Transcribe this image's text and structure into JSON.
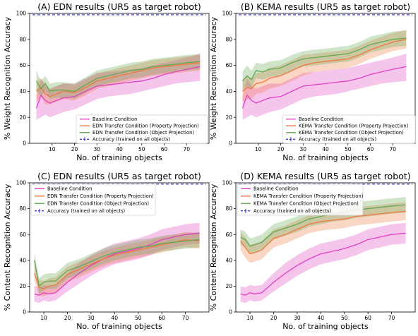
{
  "chart_data": [
    {
      "type": "line",
      "title": "(A) EDN results (UR5 as target robot)",
      "xlabel": "No. of training objects",
      "ylabel": "% Weight Recognition Accuracy",
      "xlim": [
        0,
        80
      ],
      "ylim": [
        0,
        100
      ],
      "xticks": [
        10,
        20,
        30,
        40,
        50,
        60,
        70
      ],
      "yticks": [
        0,
        20,
        40,
        60,
        80,
        100
      ],
      "reference_line": {
        "label": "Accuracy (trained on all objects)",
        "value": 99,
        "color": "#3a3ad0"
      },
      "legend_position": "lower-right",
      "x": [
        3,
        5,
        7,
        9,
        12,
        15,
        20,
        25,
        30,
        35,
        40,
        45,
        50,
        55,
        60,
        65,
        70,
        76
      ],
      "series": [
        {
          "name": "Baseline Condition",
          "color": "#e040c0",
          "values": [
            27,
            37,
            33,
            31,
            33,
            35,
            36,
            40,
            44,
            45,
            46,
            47,
            48,
            50,
            53,
            55,
            57,
            59
          ],
          "lower": [
            18,
            20,
            22,
            20,
            22,
            24,
            26,
            30,
            34,
            36,
            37,
            38,
            40,
            42,
            44,
            46,
            47,
            48
          ],
          "upper": [
            36,
            50,
            44,
            42,
            44,
            46,
            46,
            50,
            54,
            55,
            56,
            57,
            58,
            60,
            62,
            64,
            66,
            69
          ]
        },
        {
          "name": "EDN Transfer Condition (Property Projection)",
          "color": "#f07840",
          "values": [
            40,
            43,
            38,
            36,
            38,
            40,
            39,
            43,
            48,
            50,
            52,
            54,
            56,
            58,
            59,
            60,
            61,
            62
          ],
          "lower": [
            32,
            36,
            30,
            30,
            32,
            34,
            33,
            37,
            42,
            44,
            46,
            48,
            50,
            52,
            53,
            54,
            55,
            56
          ],
          "upper": [
            48,
            50,
            46,
            42,
            44,
            46,
            45,
            49,
            54,
            56,
            58,
            60,
            62,
            64,
            65,
            66,
            67,
            68
          ]
        },
        {
          "name": "EDN Transfer Condition (Object Projection)",
          "color": "#60a850",
          "values": [
            48,
            42,
            46,
            40,
            41,
            41,
            40,
            45,
            50,
            52,
            54,
            56,
            57,
            59,
            60,
            61,
            62,
            63
          ],
          "lower": [
            40,
            36,
            40,
            34,
            35,
            35,
            34,
            39,
            44,
            46,
            48,
            50,
            51,
            53,
            54,
            55,
            56,
            57
          ],
          "upper": [
            56,
            48,
            52,
            46,
            47,
            47,
            46,
            51,
            56,
            58,
            60,
            62,
            63,
            65,
            66,
            67,
            68,
            69
          ]
        }
      ]
    },
    {
      "type": "line",
      "title": "(B) KEMA results (UR5 as target robot)",
      "xlabel": "No. of training objects",
      "ylabel": "% Weight Recognition Accuracy",
      "xlim": [
        0,
        80
      ],
      "ylim": [
        0,
        100
      ],
      "xticks": [
        10,
        20,
        30,
        40,
        50,
        60,
        70
      ],
      "yticks": [
        0,
        20,
        40,
        60,
        80,
        100
      ],
      "reference_line": {
        "label": "Accuracy (trained on all objects)",
        "value": 99,
        "color": "#3a3ad0"
      },
      "legend_position": "lower-right",
      "x": [
        3,
        5,
        7,
        9,
        12,
        15,
        20,
        25,
        30,
        35,
        40,
        45,
        50,
        55,
        60,
        65,
        70,
        76
      ],
      "series": [
        {
          "name": "Baseline Condition",
          "color": "#e040c0",
          "values": [
            27,
            37,
            33,
            31,
            33,
            35,
            36,
            40,
            44,
            45,
            46,
            47,
            48,
            50,
            53,
            55,
            57,
            59
          ],
          "lower": [
            18,
            20,
            22,
            20,
            22,
            24,
            26,
            30,
            34,
            36,
            37,
            38,
            40,
            42,
            44,
            46,
            47,
            48
          ],
          "upper": [
            36,
            50,
            44,
            42,
            44,
            46,
            46,
            50,
            54,
            55,
            56,
            57,
            58,
            60,
            62,
            64,
            66,
            69
          ]
        },
        {
          "name": "KEMA Transfer Condition (Property Projection)",
          "color": "#f07840",
          "values": [
            40,
            43,
            42,
            46,
            47,
            50,
            52,
            56,
            60,
            62,
            63,
            64,
            65,
            68,
            72,
            75,
            78,
            80
          ],
          "lower": [
            32,
            34,
            34,
            38,
            39,
            42,
            44,
            48,
            52,
            55,
            56,
            57,
            58,
            61,
            65,
            68,
            71,
            73
          ],
          "upper": [
            48,
            52,
            50,
            54,
            55,
            58,
            60,
            64,
            68,
            69,
            70,
            71,
            72,
            75,
            79,
            82,
            85,
            87
          ]
        },
        {
          "name": "KEMA Transfer Condition (Object Projection)",
          "color": "#60a850",
          "values": [
            48,
            52,
            49,
            56,
            55,
            57,
            58,
            62,
            65,
            66,
            67,
            68,
            69,
            72,
            76,
            78,
            80,
            81
          ],
          "lower": [
            41,
            44,
            42,
            50,
            49,
            51,
            52,
            56,
            59,
            60,
            61,
            62,
            63,
            66,
            70,
            72,
            74,
            75
          ],
          "upper": [
            55,
            60,
            56,
            62,
            61,
            63,
            64,
            68,
            71,
            72,
            73,
            74,
            75,
            78,
            82,
            84,
            86,
            87
          ]
        }
      ]
    },
    {
      "type": "line",
      "title": "(C) EDN results (UR5 as target robot)",
      "xlabel": "No. of training objects",
      "ylabel": "% Content Recognition Accuracy",
      "xlim": [
        4,
        80
      ],
      "ylim": [
        0,
        100
      ],
      "xticks": [
        10,
        20,
        30,
        40,
        50,
        60,
        70
      ],
      "yticks": [
        0,
        20,
        40,
        60,
        80,
        100
      ],
      "reference_line": {
        "label": "Accuracy (trained on all objects)",
        "value": 99,
        "color": "#3a3ad0"
      },
      "legend_position": "upper-left",
      "x": [
        6,
        8,
        10,
        12,
        15,
        20,
        25,
        30,
        35,
        40,
        45,
        50,
        55,
        60,
        65,
        70,
        76
      ],
      "series": [
        {
          "name": "Baseline Condition",
          "color": "#e040c0",
          "values": [
            14,
            13,
            15,
            14,
            15,
            23,
            30,
            36,
            41,
            45,
            47,
            49,
            52,
            56,
            58,
            60,
            61
          ],
          "lower": [
            8,
            7,
            9,
            8,
            9,
            16,
            22,
            28,
            33,
            37,
            39,
            41,
            44,
            48,
            50,
            52,
            53
          ],
          "upper": [
            20,
            19,
            21,
            20,
            21,
            30,
            38,
            44,
            49,
            53,
            55,
            57,
            60,
            64,
            66,
            68,
            69
          ]
        },
        {
          "name": "EDN Transfer Condition (Property Projection)",
          "color": "#f07840",
          "values": [
            30,
            19,
            18,
            20,
            21,
            29,
            33,
            37,
            41,
            44,
            46,
            48,
            50,
            52,
            54,
            56,
            55
          ],
          "lower": [
            24,
            13,
            12,
            14,
            15,
            23,
            27,
            31,
            35,
            38,
            40,
            42,
            44,
            46,
            48,
            50,
            49
          ],
          "upper": [
            36,
            25,
            24,
            26,
            27,
            35,
            39,
            43,
            47,
            50,
            52,
            54,
            56,
            58,
            60,
            62,
            61
          ]
        },
        {
          "name": "EDN Transfer Condition (Object Projection)",
          "color": "#60a850",
          "values": [
            40,
            20,
            23,
            24,
            24,
            32,
            35,
            39,
            43,
            46,
            48,
            50,
            51,
            53,
            54,
            55,
            56
          ],
          "lower": [
            34,
            14,
            17,
            18,
            18,
            26,
            29,
            33,
            37,
            40,
            42,
            44,
            45,
            47,
            48,
            49,
            50
          ],
          "upper": [
            46,
            26,
            29,
            30,
            30,
            38,
            41,
            45,
            49,
            52,
            54,
            56,
            57,
            59,
            60,
            61,
            62
          ]
        }
      ]
    },
    {
      "type": "line",
      "title": "(D) KEMA results (UR5 as target robot)",
      "xlabel": "No. of training objects",
      "ylabel": "% Content Recognition Accuracy",
      "xlim": [
        4,
        80
      ],
      "ylim": [
        0,
        100
      ],
      "xticks": [
        10,
        20,
        30,
        40,
        50,
        60,
        70
      ],
      "yticks": [
        0,
        20,
        40,
        60,
        80,
        100
      ],
      "reference_line": {
        "label": "Accuracy (trained on all objects)",
        "value": 99,
        "color": "#3a3ad0"
      },
      "legend_position": "upper-left",
      "x": [
        6,
        8,
        10,
        12,
        15,
        20,
        25,
        30,
        35,
        40,
        45,
        50,
        55,
        60,
        65,
        70,
        76
      ],
      "series": [
        {
          "name": "Baseline Condition",
          "color": "#e040c0",
          "values": [
            14,
            13,
            15,
            14,
            15,
            23,
            30,
            36,
            41,
            45,
            47,
            49,
            52,
            56,
            58,
            60,
            61
          ],
          "lower": [
            8,
            7,
            9,
            8,
            9,
            16,
            22,
            28,
            33,
            37,
            39,
            41,
            44,
            48,
            50,
            52,
            53
          ],
          "upper": [
            20,
            19,
            21,
            20,
            21,
            30,
            38,
            44,
            49,
            53,
            55,
            57,
            60,
            64,
            66,
            68,
            69
          ]
        },
        {
          "name": "KEMA Transfer Condition (Property Projection)",
          "color": "#f07840",
          "values": [
            55,
            50,
            45,
            46,
            48,
            57,
            60,
            64,
            68,
            70,
            71,
            72,
            74,
            75,
            76,
            77,
            78
          ],
          "lower": [
            48,
            42,
            38,
            39,
            41,
            50,
            53,
            57,
            61,
            63,
            64,
            65,
            67,
            68,
            69,
            70,
            71
          ],
          "upper": [
            62,
            58,
            52,
            53,
            55,
            64,
            67,
            71,
            75,
            77,
            78,
            79,
            81,
            82,
            83,
            84,
            85
          ]
        },
        {
          "name": "KEMA Transfer Condition (Object Projection)",
          "color": "#60a850",
          "values": [
            58,
            56,
            51,
            52,
            54,
            62,
            65,
            68,
            72,
            74,
            76,
            77,
            79,
            80,
            81,
            82,
            83
          ],
          "lower": [
            52,
            50,
            45,
            46,
            48,
            56,
            59,
            62,
            66,
            68,
            70,
            71,
            73,
            74,
            75,
            76,
            77
          ],
          "upper": [
            64,
            62,
            57,
            58,
            60,
            68,
            71,
            74,
            78,
            80,
            82,
            83,
            85,
            86,
            87,
            88,
            89
          ]
        }
      ]
    }
  ]
}
